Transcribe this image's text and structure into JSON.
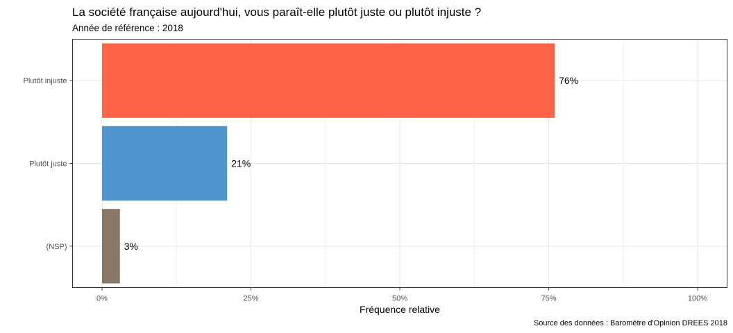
{
  "chart_data": {
    "type": "bar",
    "orientation": "horizontal",
    "title": "La société française aujourd'hui, vous paraît-elle plutôt juste ou plutôt injuste ?",
    "subtitle": "Année de référence : 2018",
    "caption": "Source des données : Baromètre d'Opinion DREES 2018",
    "xlabel": "Fréquence relative",
    "ylabel": "",
    "categories": [
      "Plutôt injuste",
      "Plutôt juste",
      "(NSP)"
    ],
    "values": [
      76,
      21,
      3
    ],
    "value_labels": [
      "76%",
      "21%",
      "3%"
    ],
    "colors": [
      "#ff6347",
      "#4f94cd",
      "#8b7765"
    ],
    "xlim": [
      0,
      100
    ],
    "x_ticks": [
      0,
      25,
      50,
      75,
      100
    ],
    "x_tick_labels": [
      "0%",
      "25%",
      "50%",
      "75%",
      "100%"
    ],
    "grid": true,
    "legend": "none"
  }
}
